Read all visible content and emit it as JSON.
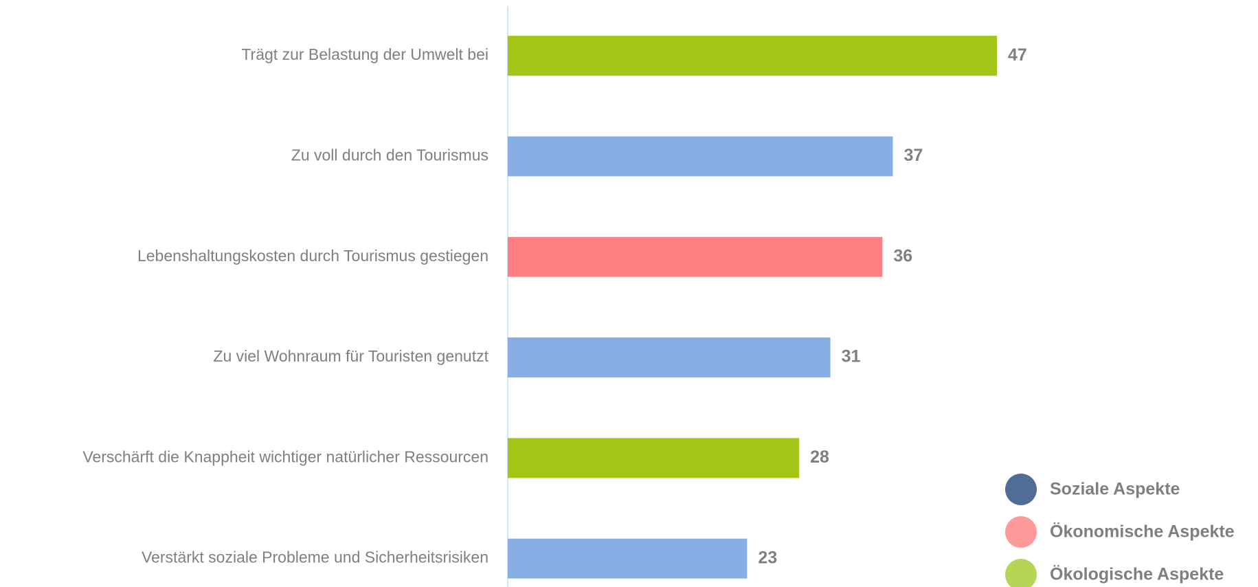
{
  "chart_data": {
    "type": "barh",
    "categories": [
      "Trägt zur Belastung der Umwelt bei",
      "Zu voll durch den Tourismus ",
      "Lebenshaltungskosten durch Tourismus gestiegen",
      "Zu viel Wohnraum für Touristen genutzt",
      "Verschärft die Knappheit wichtiger natürlicher Ressourcen",
      "Verstärkt soziale Probleme und Sicherheitsrisiken"
    ],
    "values": [
      47,
      37,
      36,
      31,
      28,
      23
    ],
    "colors": [
      "#a2c516",
      "#86aee3",
      "#ff7f82",
      "#86aee3",
      "#a2c516",
      "#86aee3"
    ],
    "legend": [
      {
        "name": "Soziale Aspekte",
        "color": "#4f6d96"
      },
      {
        "name": "Ökonomische Aspekte",
        "color": "#ff9a9a"
      },
      {
        "name": "Ökologische Aspekte",
        "color": "#b5d556"
      }
    ]
  }
}
